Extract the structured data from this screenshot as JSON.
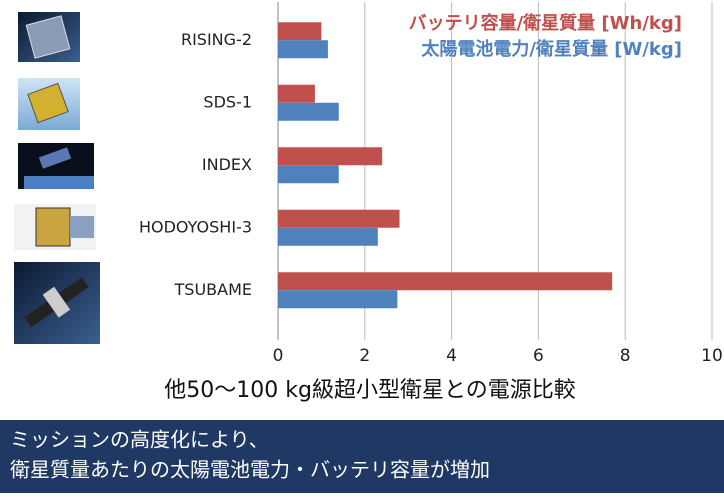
{
  "chart_data": {
    "type": "barh",
    "categories": [
      "RISING-2",
      "SDS-1",
      "INDEX",
      "HODOYOSHI-3",
      "TSUBAME"
    ],
    "series": [
      {
        "name": "バッテリ容量/衛星質量 [Wh/kg]",
        "color": "#c0504d",
        "values": [
          1.0,
          0.85,
          2.4,
          2.8,
          7.7
        ]
      },
      {
        "name": "太陽電池電力/衛星質量 [W/kg]",
        "color": "#4f81bd",
        "values": [
          1.15,
          1.4,
          1.4,
          2.3,
          2.75
        ]
      }
    ],
    "xlim": [
      0,
      10
    ],
    "xticks": [
      0,
      2,
      4,
      6,
      8,
      10
    ],
    "grid": true,
    "legend": "upper right",
    "xlabel": "他50～100 kg級超小型衛星との電源比較",
    "caption": [
      "ミッションの高度化により、",
      "衛星質量あたりの太陽電池電力・バッテリ容量が増加"
    ]
  }
}
